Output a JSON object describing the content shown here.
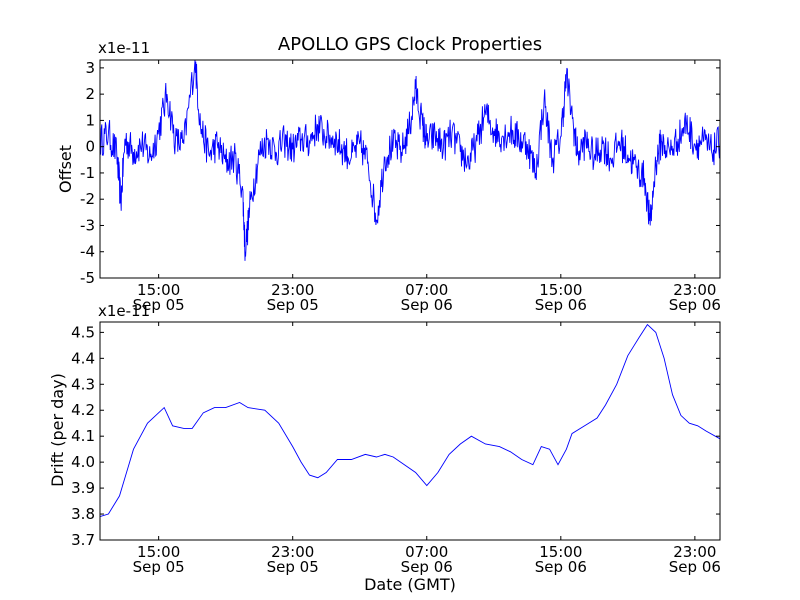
{
  "chart_data": [
    {
      "type": "line",
      "title": "APOLLO GPS Clock Properties",
      "ylabel": "Offset",
      "xlabel": "",
      "y_scale_label": "x1e-11",
      "x_range": [
        "2012-09-05 11:30",
        "2012-09-07 00:30"
      ],
      "ylim": [
        -5,
        3.3
      ],
      "y_ticks": [
        "-5",
        "-4",
        "-3",
        "-2",
        "-1",
        "0",
        "1",
        "2",
        "3"
      ],
      "x_ticks": [
        {
          "time": "2012-09-05 15:00",
          "line1": "15:00",
          "line2": "Sep 05"
        },
        {
          "time": "2012-09-05 23:00",
          "line1": "23:00",
          "line2": "Sep 05"
        },
        {
          "time": "2012-09-06 07:00",
          "line1": "07:00",
          "line2": "Sep 06"
        },
        {
          "time": "2012-09-06 15:00",
          "line1": "15:00",
          "line2": "Sep 06"
        },
        {
          "time": "2012-09-06 23:00",
          "line1": "23:00",
          "line2": "Sep 06"
        }
      ],
      "color": "#0000ff",
      "grid": false,
      "series": [
        {
          "points": [
            [
              "2012-09-05 11:30",
              0.2
            ],
            [
              "2012-09-05 12:00",
              0.5
            ],
            [
              "2012-09-05 12:30",
              -0.3
            ],
            [
              "2012-09-05 12:45",
              -2.1
            ],
            [
              "2012-09-05 13:00",
              0.3
            ],
            [
              "2012-09-05 13:30",
              -0.2
            ],
            [
              "2012-09-05 14:00",
              0.1
            ],
            [
              "2012-09-05 14:30",
              -0.4
            ],
            [
              "2012-09-05 15:00",
              0.6
            ],
            [
              "2012-09-05 15:30",
              2.0
            ],
            [
              "2012-09-05 16:00",
              0.2
            ],
            [
              "2012-09-05 16:30",
              0.1
            ],
            [
              "2012-09-05 17:10",
              3.3
            ],
            [
              "2012-09-05 17:30",
              0.8
            ],
            [
              "2012-09-05 18:00",
              -0.3
            ],
            [
              "2012-09-05 18:30",
              0.1
            ],
            [
              "2012-09-05 19:00",
              -0.6
            ],
            [
              "2012-09-05 19:30",
              -0.4
            ],
            [
              "2012-09-05 20:00",
              -1.5
            ],
            [
              "2012-09-05 20:10",
              -4.0
            ],
            [
              "2012-09-05 20:30",
              -2.0
            ],
            [
              "2012-09-05 21:00",
              -0.3
            ],
            [
              "2012-09-05 21:30",
              0.3
            ],
            [
              "2012-09-05 22:00",
              -0.2
            ],
            [
              "2012-09-05 22:30",
              0.2
            ],
            [
              "2012-09-05 23:00",
              -0.1
            ],
            [
              "2012-09-05 23:30",
              0.3
            ],
            [
              "2012-09-06 00:00",
              0.2
            ],
            [
              "2012-09-06 00:30",
              0.8
            ],
            [
              "2012-09-06 01:00",
              0.4
            ],
            [
              "2012-09-06 01:30",
              0.3
            ],
            [
              "2012-09-06 02:00",
              -0.1
            ],
            [
              "2012-09-06 02:30",
              -0.4
            ],
            [
              "2012-09-06 03:00",
              0.1
            ],
            [
              "2012-09-06 03:30",
              -0.6
            ],
            [
              "2012-09-06 04:00",
              -2.8
            ],
            [
              "2012-09-06 04:30",
              -0.4
            ],
            [
              "2012-09-06 05:00",
              0.1
            ],
            [
              "2012-09-06 05:30",
              -0.2
            ],
            [
              "2012-09-06 06:00",
              0.8
            ],
            [
              "2012-09-06 06:20",
              2.2
            ],
            [
              "2012-09-06 06:45",
              0.8
            ],
            [
              "2012-09-06 07:00",
              0.2
            ],
            [
              "2012-09-06 07:30",
              0.4
            ],
            [
              "2012-09-06 08:00",
              0.0
            ],
            [
              "2012-09-06 08:30",
              0.5
            ],
            [
              "2012-09-06 09:00",
              -0.2
            ],
            [
              "2012-09-06 09:30",
              -0.6
            ],
            [
              "2012-09-06 10:00",
              0.2
            ],
            [
              "2012-09-06 10:30",
              1.3
            ],
            [
              "2012-09-06 11:00",
              0.6
            ],
            [
              "2012-09-06 11:30",
              0.4
            ],
            [
              "2012-09-06 12:00",
              0.6
            ],
            [
              "2012-09-06 12:30",
              0.3
            ],
            [
              "2012-09-06 13:00",
              0.1
            ],
            [
              "2012-09-06 13:30",
              -1.0
            ],
            [
              "2012-09-06 14:00",
              1.8
            ],
            [
              "2012-09-06 14:30",
              -0.5
            ],
            [
              "2012-09-06 15:00",
              0.4
            ],
            [
              "2012-09-06 15:20",
              2.7
            ],
            [
              "2012-09-06 15:45",
              0.8
            ],
            [
              "2012-09-06 16:00",
              -0.3
            ],
            [
              "2012-09-06 16:30",
              0.2
            ],
            [
              "2012-09-06 17:00",
              -0.4
            ],
            [
              "2012-09-06 17:30",
              0.1
            ],
            [
              "2012-09-06 18:00",
              -0.5
            ],
            [
              "2012-09-06 18:30",
              0.2
            ],
            [
              "2012-09-06 19:00",
              -0.3
            ],
            [
              "2012-09-06 19:30",
              -0.8
            ],
            [
              "2012-09-06 20:00",
              -1.2
            ],
            [
              "2012-09-06 20:20",
              -3.0
            ],
            [
              "2012-09-06 20:40",
              -0.6
            ],
            [
              "2012-09-06 21:00",
              0.2
            ],
            [
              "2012-09-06 21:30",
              -0.2
            ],
            [
              "2012-09-06 22:00",
              0.3
            ],
            [
              "2012-09-06 22:30",
              0.9
            ],
            [
              "2012-09-06 23:00",
              0.1
            ],
            [
              "2012-09-06 23:30",
              0.2
            ],
            [
              "2012-09-07 00:00",
              -0.2
            ],
            [
              "2012-09-07 00:30",
              0.2
            ]
          ]
        }
      ]
    },
    {
      "type": "line",
      "title": "",
      "ylabel": "Drift (per day)",
      "xlabel": "Date (GMT)",
      "y_scale_label": "x1e-11",
      "x_range": [
        "2012-09-05 11:30",
        "2012-09-07 00:30"
      ],
      "ylim": [
        3.7,
        4.54
      ],
      "y_ticks": [
        "3.7",
        "3.8",
        "3.9",
        "4.0",
        "4.1",
        "4.2",
        "4.3",
        "4.4",
        "4.5"
      ],
      "x_ticks": [
        {
          "time": "2012-09-05 15:00",
          "line1": "15:00",
          "line2": "Sep 05"
        },
        {
          "time": "2012-09-05 23:00",
          "line1": "23:00",
          "line2": "Sep 05"
        },
        {
          "time": "2012-09-06 07:00",
          "line1": "07:00",
          "line2": "Sep 06"
        },
        {
          "time": "2012-09-06 15:00",
          "line1": "15:00",
          "line2": "Sep 06"
        },
        {
          "time": "2012-09-06 23:00",
          "line1": "23:00",
          "line2": "Sep 06"
        }
      ],
      "color": "#0000ff",
      "grid": false,
      "series": [
        {
          "points": [
            [
              "2012-09-05 11:30",
              3.79
            ],
            [
              "2012-09-05 12:00",
              3.8
            ],
            [
              "2012-09-05 12:40",
              3.87
            ],
            [
              "2012-09-05 13:30",
              4.05
            ],
            [
              "2012-09-05 14:20",
              4.15
            ],
            [
              "2012-09-05 15:00",
              4.19
            ],
            [
              "2012-09-05 15:20",
              4.21
            ],
            [
              "2012-09-05 15:50",
              4.14
            ],
            [
              "2012-09-05 16:30",
              4.13
            ],
            [
              "2012-09-05 17:00",
              4.13
            ],
            [
              "2012-09-05 17:40",
              4.19
            ],
            [
              "2012-09-05 18:20",
              4.21
            ],
            [
              "2012-09-05 19:00",
              4.21
            ],
            [
              "2012-09-05 19:50",
              4.23
            ],
            [
              "2012-09-05 20:20",
              4.21
            ],
            [
              "2012-09-05 21:20",
              4.2
            ],
            [
              "2012-09-05 22:10",
              4.15
            ],
            [
              "2012-09-05 23:00",
              4.06
            ],
            [
              "2012-09-05 23:30",
              4.0
            ],
            [
              "2012-09-06 00:00",
              3.95
            ],
            [
              "2012-09-06 00:30",
              3.94
            ],
            [
              "2012-09-06 01:00",
              3.96
            ],
            [
              "2012-09-06 01:40",
              4.01
            ],
            [
              "2012-09-06 02:30",
              4.01
            ],
            [
              "2012-09-06 03:20",
              4.03
            ],
            [
              "2012-09-06 04:00",
              4.02
            ],
            [
              "2012-09-06 04:30",
              4.03
            ],
            [
              "2012-09-06 05:00",
              4.02
            ],
            [
              "2012-09-06 05:40",
              3.99
            ],
            [
              "2012-09-06 06:20",
              3.96
            ],
            [
              "2012-09-06 07:00",
              3.91
            ],
            [
              "2012-09-06 07:40",
              3.96
            ],
            [
              "2012-09-06 08:20",
              4.03
            ],
            [
              "2012-09-06 09:00",
              4.07
            ],
            [
              "2012-09-06 09:40",
              4.1
            ],
            [
              "2012-09-06 10:30",
              4.07
            ],
            [
              "2012-09-06 11:20",
              4.06
            ],
            [
              "2012-09-06 12:00",
              4.04
            ],
            [
              "2012-09-06 12:40",
              4.01
            ],
            [
              "2012-09-06 13:20",
              3.99
            ],
            [
              "2012-09-06 13:50",
              4.06
            ],
            [
              "2012-09-06 14:20",
              4.05
            ],
            [
              "2012-09-06 14:50",
              3.99
            ],
            [
              "2012-09-06 15:20",
              4.05
            ],
            [
              "2012-09-06 15:40",
              4.11
            ],
            [
              "2012-09-06 16:10",
              4.13
            ],
            [
              "2012-09-06 16:40",
              4.15
            ],
            [
              "2012-09-06 17:10",
              4.17
            ],
            [
              "2012-09-06 17:40",
              4.22
            ],
            [
              "2012-09-06 18:20",
              4.3
            ],
            [
              "2012-09-06 19:00",
              4.41
            ],
            [
              "2012-09-06 19:40",
              4.48
            ],
            [
              "2012-09-06 20:10",
              4.53
            ],
            [
              "2012-09-06 20:40",
              4.5
            ],
            [
              "2012-09-06 21:10",
              4.4
            ],
            [
              "2012-09-06 21:40",
              4.26
            ],
            [
              "2012-09-06 22:10",
              4.18
            ],
            [
              "2012-09-06 22:40",
              4.15
            ],
            [
              "2012-09-06 23:10",
              4.14
            ],
            [
              "2012-09-06 23:40",
              4.12
            ],
            [
              "2012-09-07 00:30",
              4.09
            ]
          ]
        }
      ]
    }
  ]
}
